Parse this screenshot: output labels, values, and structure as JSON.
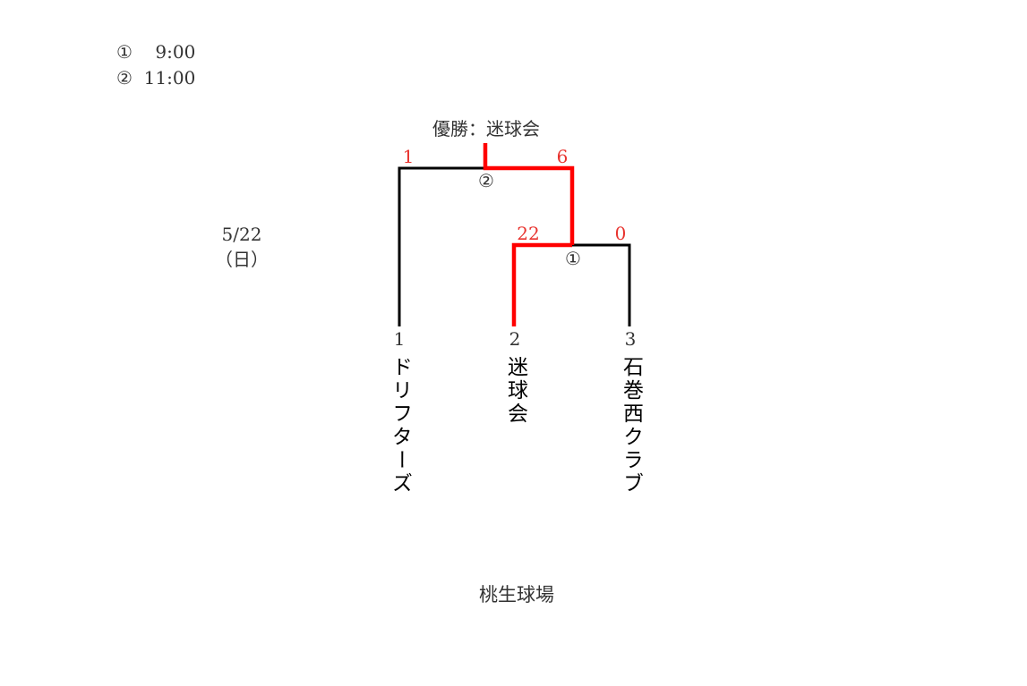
{
  "schedule": [
    {
      "mark": "①",
      "time": "9:00"
    },
    {
      "mark": "②",
      "time": "11:00"
    }
  ],
  "date": {
    "day": "5/22",
    "weekday": "（日）"
  },
  "champion_label": "優勝：迷球会",
  "venue": "桃生球場",
  "games": [
    {
      "mark": "②",
      "left_score": "1",
      "right_score": "6"
    },
    {
      "mark": "①",
      "left_score": "22",
      "right_score": "0"
    }
  ],
  "teams": [
    {
      "seed": "1",
      "name": "ドリフターズ"
    },
    {
      "seed": "2",
      "name": "迷球会"
    },
    {
      "seed": "3",
      "name": "石巻西クラブ"
    }
  ],
  "colors": {
    "winner_line": "#ff0000",
    "score": "#e8342f",
    "line": "#000000"
  }
}
